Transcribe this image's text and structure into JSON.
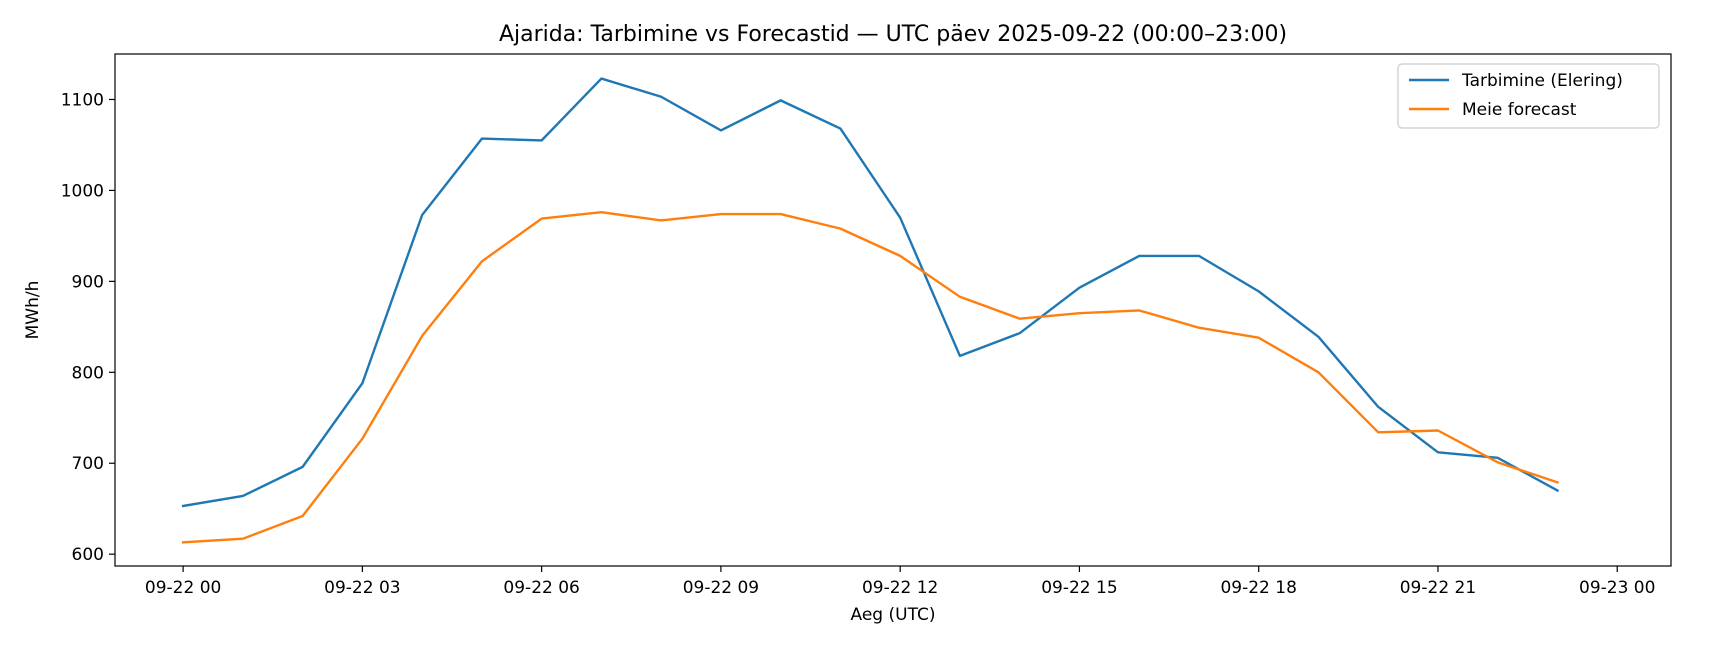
{
  "chart_data": {
    "type": "line",
    "title": "Ajarida: Tarbimine vs Forecastid — UTC päev 2025-09-22 (00:00–23:00)",
    "xlabel": "Aeg (UTC)",
    "ylabel": "MWh/h",
    "x": [
      "00:00",
      "01:00",
      "02:00",
      "03:00",
      "04:00",
      "05:00",
      "06:00",
      "07:00",
      "08:00",
      "09:00",
      "10:00",
      "11:00",
      "12:00",
      "13:00",
      "14:00",
      "15:00",
      "16:00",
      "17:00",
      "18:00",
      "19:00",
      "20:00",
      "21:00",
      "22:00",
      "23:00"
    ],
    "x_ticks": [
      "09-22 00",
      "09-22 03",
      "09-22 06",
      "09-22 09",
      "09-22 12",
      "09-22 15",
      "09-22 18",
      "09-22 21",
      "09-23 00"
    ],
    "xlim_hours": [
      -1.14,
      24.9
    ],
    "ylim": [
      587,
      1150
    ],
    "y_ticks": [
      600,
      700,
      800,
      900,
      1000,
      1100
    ],
    "grid": false,
    "legend_position": "top-right",
    "series": [
      {
        "name": "Tarbimine (Elering)",
        "color": "#1f77b4",
        "values": [
          653,
          664,
          696,
          788,
          973,
          1057,
          1055,
          1123,
          1103,
          1066,
          1099,
          1068,
          970,
          818,
          843,
          893,
          928,
          928,
          889,
          839,
          762,
          712,
          706,
          670
        ]
      },
      {
        "name": "Meie forecast",
        "color": "#ff7f0e",
        "values": [
          613,
          617,
          642,
          727,
          840,
          922,
          969,
          976,
          967,
          974,
          974,
          958,
          928,
          883,
          859,
          865,
          868,
          849,
          838,
          800,
          734,
          736,
          701,
          679
        ]
      }
    ]
  }
}
